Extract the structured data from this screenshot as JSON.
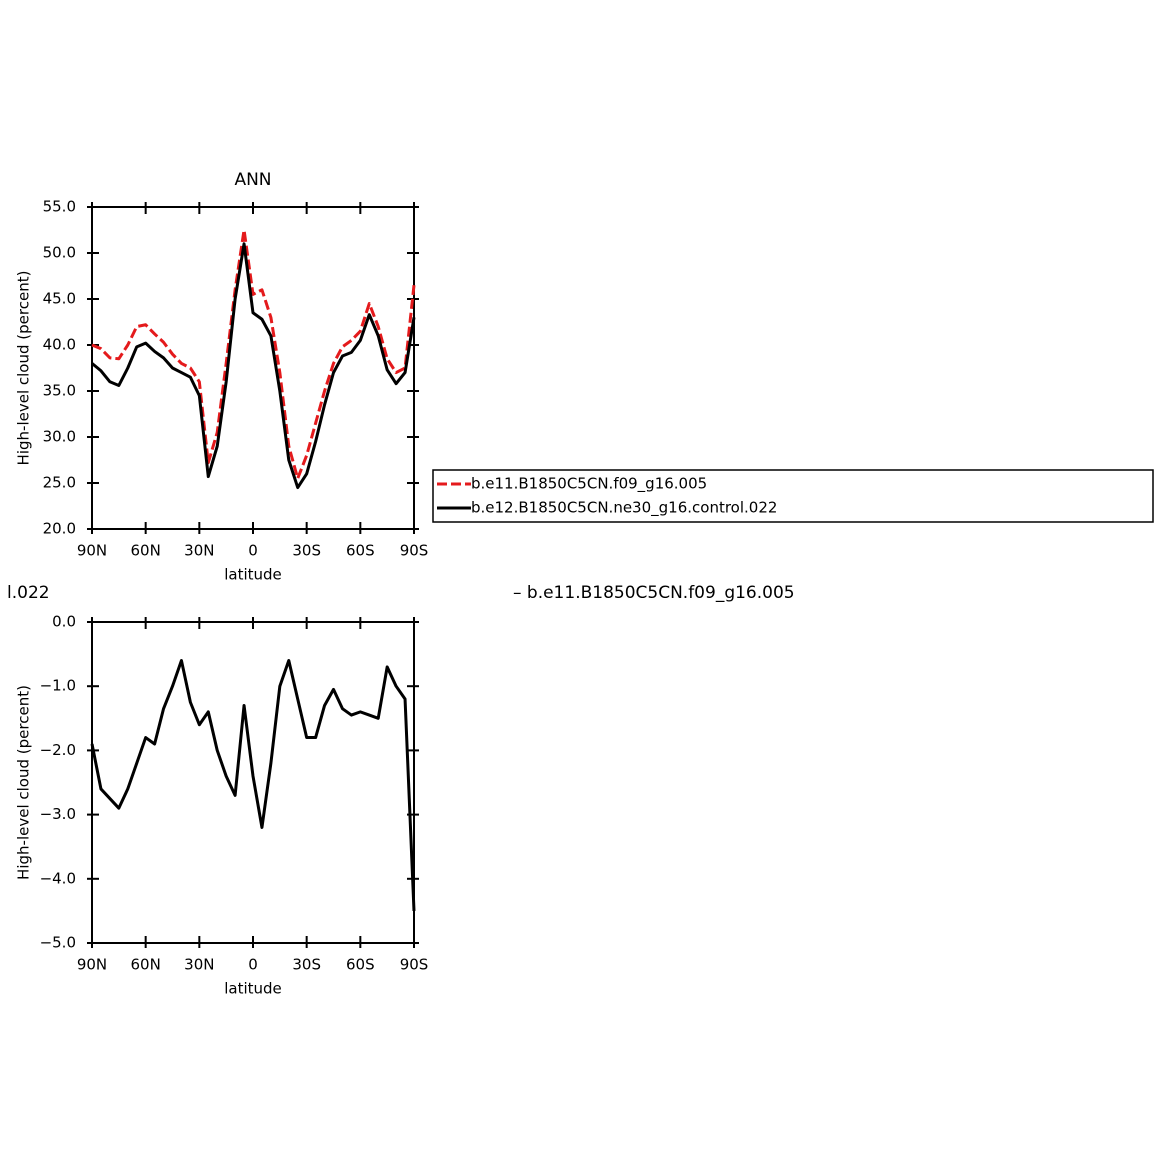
{
  "chart_data": [
    {
      "type": "line",
      "title": "ANN",
      "xlabel": "latitude",
      "ylabel": "High-level cloud (percent)",
      "x": [
        90,
        85,
        80,
        75,
        70,
        65,
        60,
        55,
        50,
        45,
        40,
        35,
        30,
        25,
        20,
        15,
        10,
        5,
        0,
        -5,
        -10,
        -15,
        -20,
        -25,
        -30,
        -35,
        -40,
        -45,
        -50,
        -55,
        -60,
        -65,
        -70,
        -75,
        -80,
        -85,
        -90
      ],
      "series": [
        {
          "name": "b.e11.B1850C5CN.f09_g16.005",
          "color": "#e41a1c",
          "linestyle": "dashed",
          "values": [
            40.0,
            39.6,
            38.6,
            38.5,
            40.0,
            42.0,
            42.2,
            41.2,
            40.3,
            39.0,
            38.0,
            37.5,
            36.0,
            27.2,
            30.5,
            38.0,
            46.0,
            52.5,
            45.5,
            46.0,
            43.0,
            37.0,
            29.0,
            25.5,
            28.0,
            31.5,
            35.0,
            38.0,
            39.8,
            40.5,
            41.5,
            44.5,
            42.0,
            38.5,
            37.0,
            37.5,
            46.5
          ]
        },
        {
          "name": "b.e12.B1850C5CN.ne30_g16.control.022",
          "color": "#000000",
          "linestyle": "solid",
          "values": [
            38.0,
            37.2,
            36.0,
            35.6,
            37.5,
            39.8,
            40.2,
            39.3,
            38.6,
            37.5,
            37.0,
            36.5,
            34.5,
            25.7,
            29.0,
            36.0,
            45.0,
            51.0,
            43.5,
            42.8,
            41.0,
            35.0,
            27.5,
            24.5,
            26.0,
            29.5,
            33.5,
            37.0,
            38.8,
            39.2,
            40.5,
            43.3,
            41.0,
            37.3,
            35.8,
            37.0,
            43.0
          ]
        }
      ],
      "xlim": [
        90,
        -90
      ],
      "xticks": [
        {
          "value": 90,
          "label": "90N"
        },
        {
          "value": 60,
          "label": "60N"
        },
        {
          "value": 30,
          "label": "30N"
        },
        0,
        {
          "value": -30,
          "label": "30S"
        },
        {
          "value": -60,
          "label": "60S"
        },
        {
          "value": -90,
          "label": "90S"
        }
      ],
      "ylim": [
        20,
        55
      ],
      "yticks": [
        {
          "value": 20,
          "label": "20.0"
        },
        {
          "value": 25,
          "label": "25.0"
        },
        {
          "value": 30,
          "label": "30.0"
        },
        {
          "value": 35,
          "label": "35.0"
        },
        {
          "value": 40,
          "label": "40.0"
        },
        {
          "value": 45,
          "label": "45.0"
        },
        {
          "value": 50,
          "label": "50.0"
        },
        {
          "value": 55,
          "label": "55.0"
        }
      ],
      "legend": "right",
      "grid": false
    },
    {
      "type": "line",
      "title_left": "l.022",
      "title_right": "– b.e11.B1850C5CN.f09_g16.005",
      "xlabel": "latitude",
      "ylabel": "High-level cloud (percent)",
      "x": [
        90,
        85,
        80,
        75,
        70,
        65,
        60,
        55,
        50,
        45,
        40,
        35,
        30,
        25,
        20,
        15,
        10,
        5,
        0,
        -5,
        -10,
        -15,
        -20,
        -25,
        -30,
        -35,
        -40,
        -45,
        -50,
        -55,
        -60,
        -65,
        -70,
        -75,
        -80,
        -85,
        -90
      ],
      "series": [
        {
          "color": "#000000",
          "linestyle": "solid",
          "values": [
            -1.9,
            -2.6,
            -2.75,
            -2.9,
            -2.6,
            -2.2,
            -1.8,
            -1.9,
            -1.35,
            -1.0,
            -0.6,
            -1.25,
            -1.6,
            -1.4,
            -2.0,
            -2.4,
            -2.7,
            -1.3,
            -2.4,
            -3.2,
            -2.2,
            -1.0,
            -0.6,
            -1.2,
            -1.8,
            -1.8,
            -1.3,
            -1.05,
            -1.35,
            -1.45,
            -1.4,
            -1.45,
            -1.5,
            -0.7,
            -1.0,
            -1.2,
            -4.5
          ]
        }
      ],
      "xlim": [
        90,
        -90
      ],
      "xticks": [
        {
          "value": 90,
          "label": "90N"
        },
        {
          "value": 60,
          "label": "60N"
        },
        {
          "value": 30,
          "label": "30N"
        },
        0,
        {
          "value": -30,
          "label": "30S"
        },
        {
          "value": -60,
          "label": "60S"
        },
        {
          "value": -90,
          "label": "90S"
        }
      ],
      "ylim": [
        -5,
        0
      ],
      "yticks": [
        {
          "value": -5,
          "label": "−5.0"
        },
        {
          "value": -4,
          "label": "−4.0"
        },
        {
          "value": -3,
          "label": "−3.0"
        },
        {
          "value": -2,
          "label": "−2.0"
        },
        {
          "value": -1,
          "label": "−1.0"
        },
        {
          "value": 0,
          "label": "0.0"
        }
      ],
      "grid": false
    }
  ]
}
